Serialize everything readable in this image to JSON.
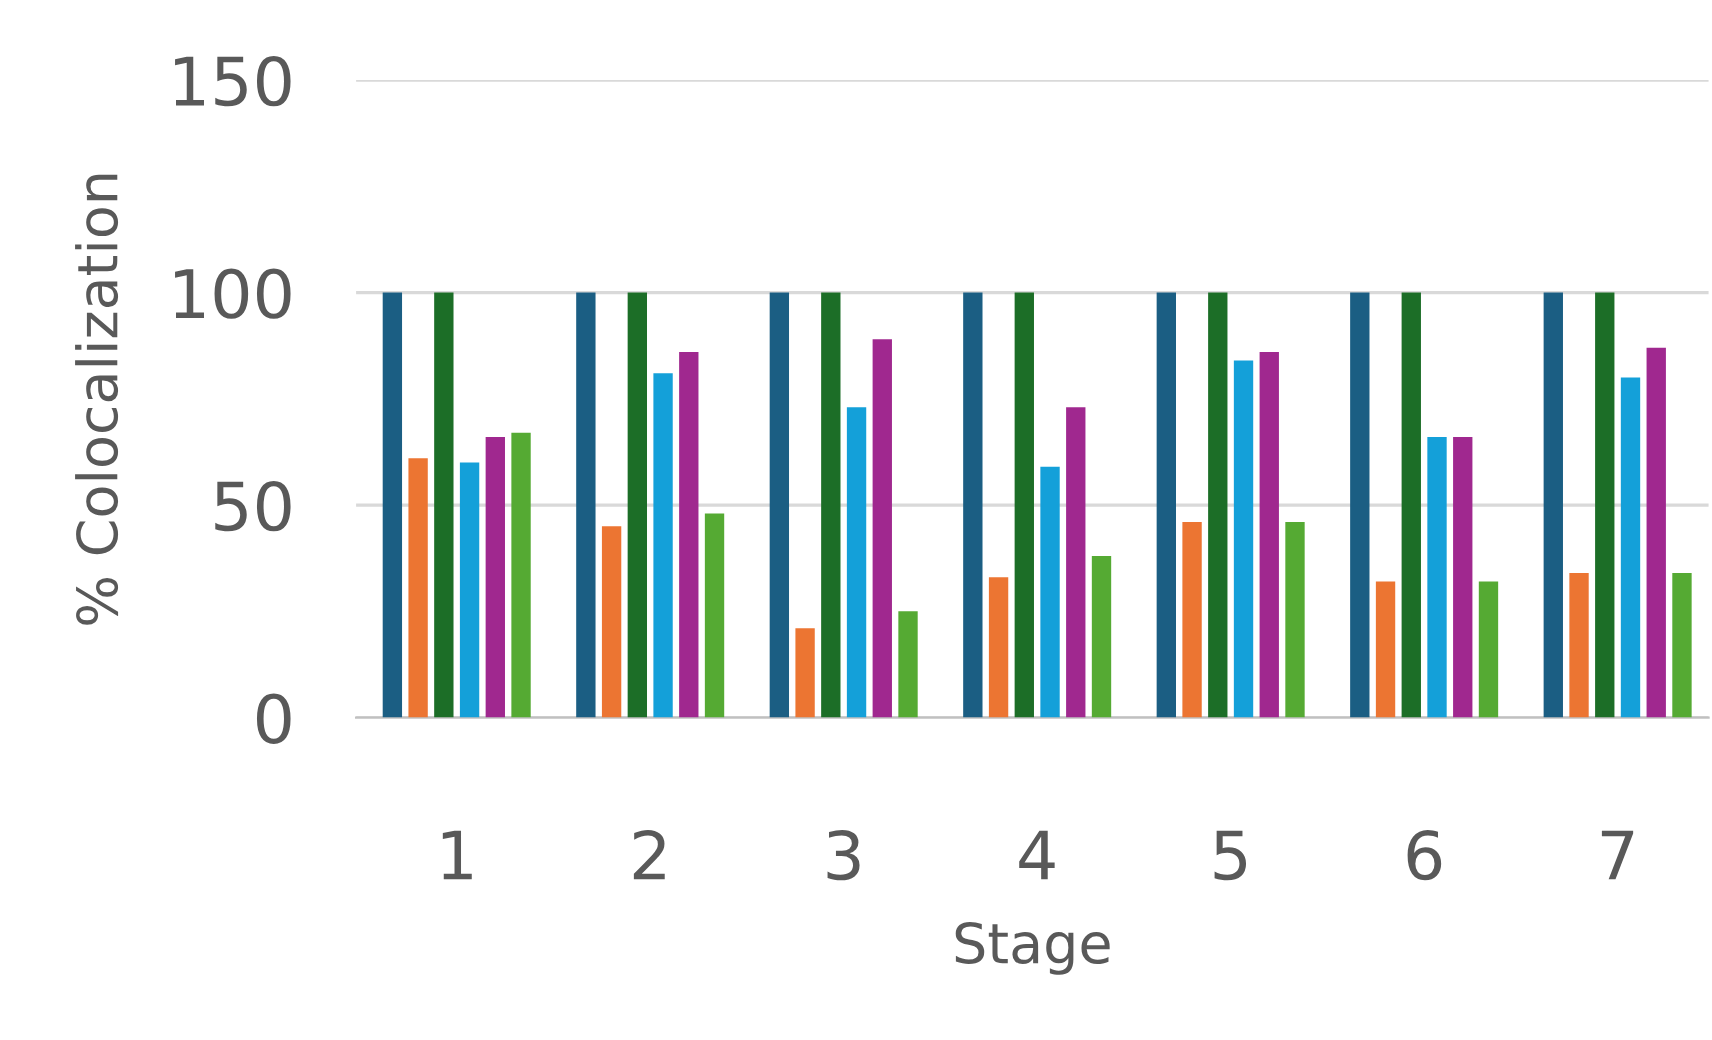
{
  "chart_data": {
    "type": "bar",
    "xlabel": "Stage",
    "ylabel": "% Colocalization",
    "categories": [
      "1",
      "2",
      "3",
      "4",
      "5",
      "6",
      "7"
    ],
    "series": [
      {
        "color": "#1b5e83",
        "values": [
          100,
          100,
          100,
          100,
          100,
          100,
          100
        ]
      },
      {
        "color": "#ec7532",
        "values": [
          61,
          45,
          21,
          33,
          46,
          32,
          34
        ]
      },
      {
        "color": "#1c6e27",
        "values": [
          100,
          100,
          100,
          100,
          100,
          100,
          100
        ]
      },
      {
        "color": "#14a0d9",
        "values": [
          60,
          81,
          73,
          59,
          84,
          66,
          80
        ]
      },
      {
        "color": "#a0288f",
        "values": [
          66,
          86,
          89,
          73,
          86,
          66,
          87
        ]
      },
      {
        "color": "#55aa33",
        "values": [
          67,
          48,
          25,
          38,
          46,
          32,
          34
        ]
      }
    ],
    "ylim": [
      0,
      150
    ],
    "yticks": [
      0,
      50,
      100,
      150
    ],
    "grid": "y",
    "legend": false
  }
}
